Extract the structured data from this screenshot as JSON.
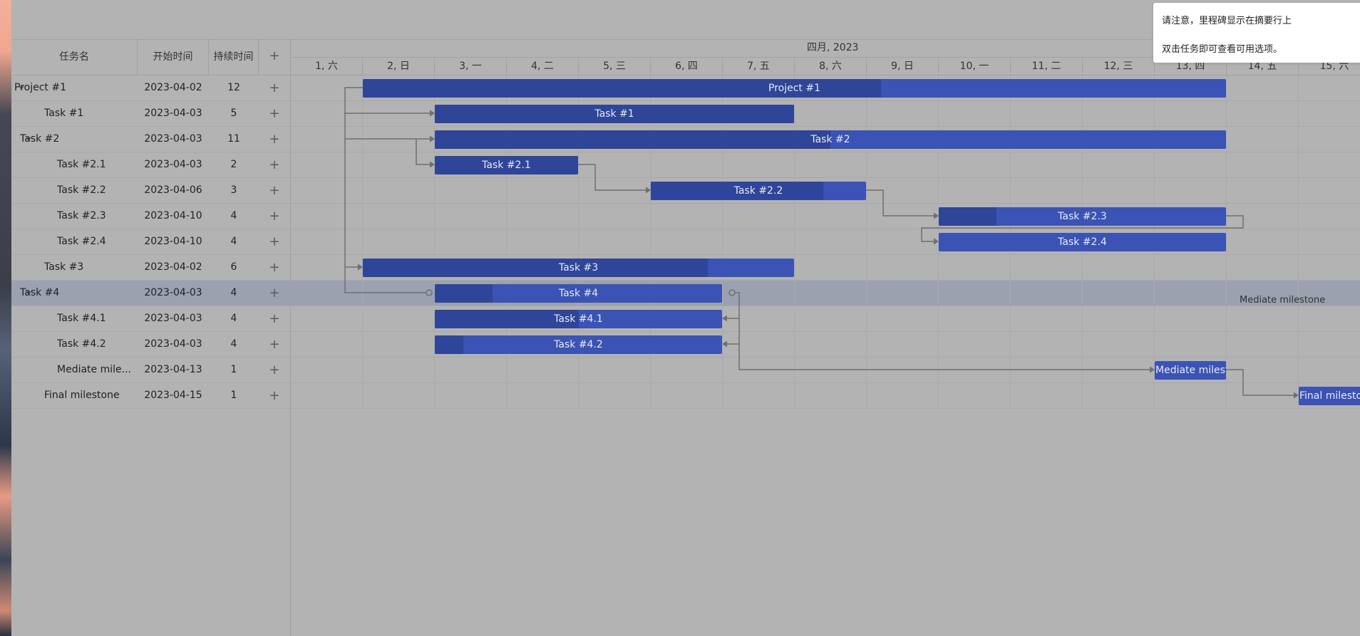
{
  "grid": {
    "headers": {
      "name": "任务名",
      "start": "开始时间",
      "duration": "持续时间",
      "add": "+"
    },
    "rows": [
      {
        "name": "Project #1",
        "start": "2023-04-02",
        "duration": "12",
        "expand": true
      },
      {
        "name": "Task #1",
        "start": "2023-04-03",
        "duration": "5",
        "expand": false
      },
      {
        "name": "Task #2",
        "start": "2023-04-03",
        "duration": "11",
        "expand": true
      },
      {
        "name": "Task #2.1",
        "start": "2023-04-03",
        "duration": "2",
        "expand": false
      },
      {
        "name": "Task #2.2",
        "start": "2023-04-06",
        "duration": "3",
        "expand": false
      },
      {
        "name": "Task #2.3",
        "start": "2023-04-10",
        "duration": "4",
        "expand": false
      },
      {
        "name": "Task #2.4",
        "start": "2023-04-10",
        "duration": "4",
        "expand": false
      },
      {
        "name": "Task #3",
        "start": "2023-04-02",
        "duration": "6",
        "expand": false
      },
      {
        "name": "Task #4",
        "start": "2023-04-03",
        "duration": "4",
        "expand": true,
        "selected": true
      },
      {
        "name": "Task #4.1",
        "start": "2023-04-03",
        "duration": "4",
        "expand": false
      },
      {
        "name": "Task #4.2",
        "start": "2023-04-03",
        "duration": "4",
        "expand": false
      },
      {
        "name": "Mediate mile...",
        "start": "2023-04-13",
        "duration": "1",
        "expand": false
      },
      {
        "name": "Final milestone",
        "start": "2023-04-15",
        "duration": "1",
        "expand": false
      }
    ]
  },
  "timeline": {
    "month": "四月, 2023",
    "days": [
      "1, 六",
      "2, 日",
      "3, 一",
      "4, 二",
      "5, 三",
      "6, 四",
      "7, 五",
      "8, 六",
      "9, 日",
      "10, 一",
      "11, 二",
      "12, 三",
      "13, 四",
      "14, 五",
      "15, 六"
    ]
  },
  "bars": [
    {
      "label": "Project #1",
      "progress": 0.6
    },
    {
      "label": "Task #1",
      "progress": 1.0
    },
    {
      "label": "Task #2",
      "progress": 0.5
    },
    {
      "label": "Task #2.1",
      "progress": 1.0
    },
    {
      "label": "Task #2.2",
      "progress": 0.8
    },
    {
      "label": "Task #2.3",
      "progress": 0.2
    },
    {
      "label": "Task #2.4",
      "progress": 0.0
    },
    {
      "label": "Task #3",
      "progress": 0.8
    },
    {
      "label": "Task #4",
      "progress": 0.2
    },
    {
      "label": "Task #4.1",
      "progress": 0.5
    },
    {
      "label": "Task #4.2",
      "progress": 0.1
    },
    {
      "label": "Mediate milestone",
      "progress": 0.0
    },
    {
      "label": "Final milestone",
      "progress": 0.0
    }
  ],
  "milestone_side_label": "Mediate milestone",
  "notice": {
    "line1": "请注意，里程碑显示在摘要行上",
    "line2": "双击任务即可查看可用选项。"
  },
  "colors": {
    "bar": "#3a53b5",
    "progress": "#2e4599",
    "link": "#6f6f6f",
    "selection": "#9ba1af"
  }
}
